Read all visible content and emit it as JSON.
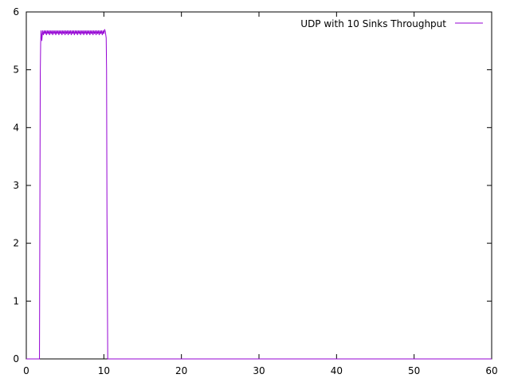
{
  "chart_data": {
    "type": "line",
    "title": "",
    "xlabel": "",
    "ylabel": "",
    "xlim": [
      0,
      60
    ],
    "ylim": [
      0,
      6
    ],
    "x_ticks": [
      0,
      10,
      20,
      30,
      40,
      50,
      60
    ],
    "y_ticks": [
      0,
      1,
      2,
      3,
      4,
      5,
      6
    ],
    "grid": false,
    "legend_position": "top-right",
    "series": [
      {
        "name": "UDP with 10 Sinks Throughput",
        "color": "#9400d3",
        "x": [
          0,
          1.7,
          1.75,
          1.8,
          1.85,
          1.9,
          2.0,
          2.1,
          2.2,
          2.3,
          2.4,
          2.5,
          2.6,
          2.7,
          2.8,
          2.9,
          3.0,
          3.1,
          3.2,
          3.3,
          3.4,
          3.5,
          3.6,
          3.7,
          3.8,
          3.9,
          4.0,
          4.1,
          4.2,
          4.3,
          4.4,
          4.5,
          4.6,
          4.7,
          4.8,
          4.9,
          5.0,
          5.1,
          5.2,
          5.3,
          5.4,
          5.5,
          5.6,
          5.7,
          5.8,
          5.9,
          6.0,
          6.1,
          6.2,
          6.3,
          6.4,
          6.5,
          6.6,
          6.7,
          6.8,
          6.9,
          7.0,
          7.1,
          7.2,
          7.3,
          7.4,
          7.5,
          7.6,
          7.7,
          7.8,
          7.9,
          8.0,
          8.1,
          8.2,
          8.3,
          8.4,
          8.5,
          8.6,
          8.7,
          8.8,
          8.9,
          9.0,
          9.1,
          9.2,
          9.3,
          9.4,
          9.5,
          9.6,
          9.7,
          9.8,
          9.9,
          10.0,
          10.1,
          10.2,
          10.25,
          10.3,
          10.35,
          10.4,
          10.5,
          11,
          60
        ],
        "y": [
          0,
          0,
          2.5,
          4.9,
          5.45,
          5.68,
          5.5,
          5.68,
          5.6,
          5.68,
          5.62,
          5.68,
          5.6,
          5.68,
          5.62,
          5.68,
          5.6,
          5.68,
          5.62,
          5.68,
          5.6,
          5.68,
          5.62,
          5.68,
          5.6,
          5.68,
          5.62,
          5.68,
          5.6,
          5.68,
          5.62,
          5.68,
          5.6,
          5.68,
          5.62,
          5.68,
          5.6,
          5.68,
          5.62,
          5.68,
          5.6,
          5.68,
          5.62,
          5.68,
          5.6,
          5.68,
          5.62,
          5.68,
          5.6,
          5.68,
          5.62,
          5.68,
          5.6,
          5.68,
          5.62,
          5.68,
          5.6,
          5.68,
          5.62,
          5.68,
          5.6,
          5.68,
          5.62,
          5.68,
          5.6,
          5.68,
          5.62,
          5.68,
          5.6,
          5.68,
          5.62,
          5.68,
          5.6,
          5.68,
          5.62,
          5.68,
          5.6,
          5.68,
          5.62,
          5.68,
          5.6,
          5.68,
          5.62,
          5.68,
          5.6,
          5.68,
          5.62,
          5.7,
          5.65,
          5.6,
          5.55,
          5.0,
          2.5,
          0,
          0,
          0
        ]
      }
    ]
  }
}
